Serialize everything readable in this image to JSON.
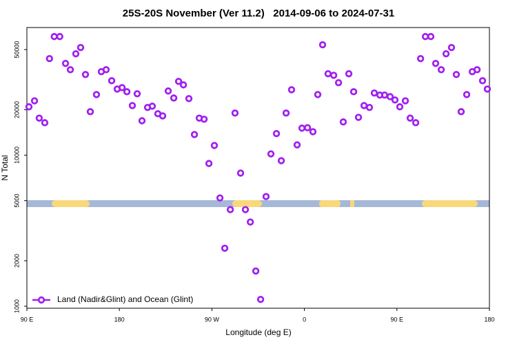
{
  "chart_data": {
    "type": "scatter",
    "title": "25S-20S November (Ver 11.2)   2014-09-06 to 2024-07-31",
    "xlabel": "Longitude (deg E)",
    "ylabel": "N Total",
    "log_y": true,
    "color": "#a020f0",
    "legend": "bottom-left",
    "xlim": [
      90,
      540
    ],
    "ylim": [
      970,
      70000
    ],
    "xticks": [
      {
        "value": 90,
        "label": "90 E"
      },
      {
        "value": 180,
        "label": "180"
      },
      {
        "value": 270,
        "label": "90 W"
      },
      {
        "value": 360,
        "label": "0"
      },
      {
        "value": 450,
        "label": "90 E"
      },
      {
        "value": 540,
        "label": "180"
      }
    ],
    "yticks": [
      1000,
      2000,
      5000,
      10000,
      20000,
      50000
    ],
    "series": [
      {
        "name": "Land (Nadir&Glint) and Ocean (Glint)",
        "color": "#a020f0",
        "x": [
          92,
          97.4,
          102,
          107.4,
          112,
          116.6,
          122,
          127.6,
          132.3,
          137.6,
          142.3,
          147,
          151.7,
          157.7,
          162.4,
          167.1,
          172.5,
          177.9,
          182.6,
          187.3,
          192.6,
          197.3,
          202,
          207.4,
          212,
          217.4,
          222.1,
          227.5,
          232.9,
          237.6,
          242.3,
          247.6,
          253,
          257.7,
          262.4,
          267.1,
          272.4,
          277.8,
          282.5,
          287.9,
          292.5,
          297.9,
          302.6,
          307.4,
          312.7,
          317.4,
          322.7,
          327.4,
          332.8,
          337.5,
          342.2,
          347.5,
          352.9,
          357.6,
          363,
          368.3,
          373,
          377.7,
          383,
          388.5,
          393.2,
          397.8,
          403.2,
          407.9,
          412.6,
          418,
          423.3,
          428,
          433.4,
          438,
          443.4,
          448.1,
          452.8,
          458.2,
          462.9,
          468.3,
          473,
          477.7,
          483,
          487.7,
          493.1,
          497.8,
          503.1,
          507.8,
          512.5,
          517.9,
          523.3,
          528,
          533.3,
          538
        ],
        "values": [
          20900,
          22900,
          17600,
          16400,
          43600,
          61000,
          61000,
          40500,
          36800,
          46900,
          51600,
          34200,
          19400,
          25200,
          35700,
          36800,
          31100,
          27400,
          28000,
          26300,
          21300,
          25500,
          16900,
          20700,
          21100,
          18800,
          18200,
          26600,
          23900,
          30800,
          29200,
          23700,
          13700,
          17600,
          17300,
          8810,
          11600,
          5210,
          2420,
          4360,
          19000,
          7610,
          4360,
          3610,
          1710,
          1110,
          5320,
          10200,
          13900,
          9190,
          19000,
          27100,
          11700,
          15100,
          15200,
          14300,
          25200,
          53800,
          34600,
          33800,
          30200,
          16600,
          34600,
          26300,
          17800,
          21300,
          20700,
          25800,
          25000,
          25000,
          24400,
          23200,
          20900,
          22900,
          17600,
          16400,
          43600,
          61000,
          61000,
          40500,
          36800,
          46900,
          51600,
          34200,
          19400,
          25200,
          35700,
          36800,
          31100,
          27400
        ]
      }
    ]
  }
}
